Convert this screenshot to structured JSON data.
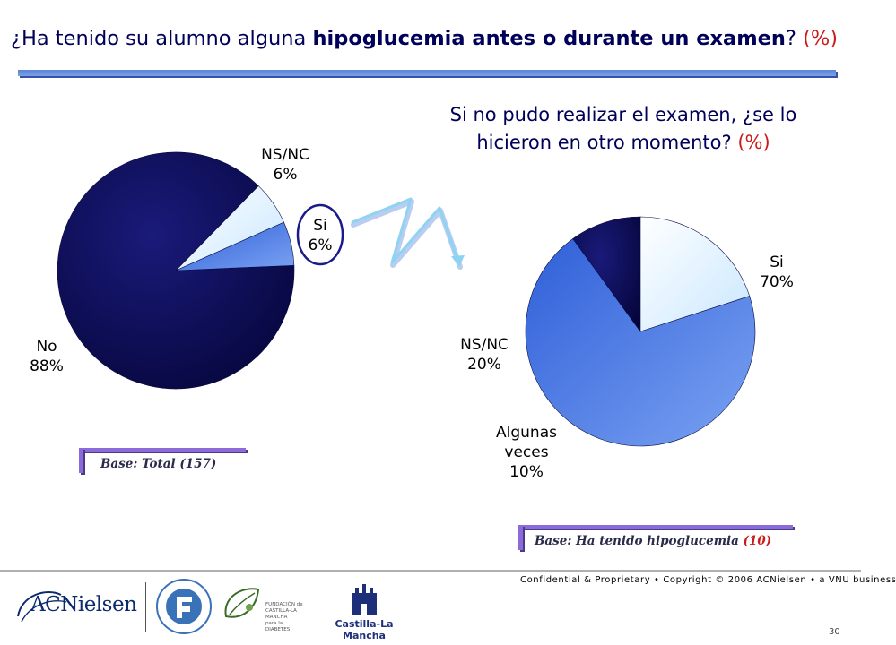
{
  "header": {
    "title_lead": "¿Ha tenido su alumno alguna ",
    "title_bold": "hipoglucemia antes o durante un examen",
    "title_tail": "? ",
    "title_pct": "(%)"
  },
  "sub": {
    "line1": "Si no pudo realizar el examen, ¿se lo",
    "line2": "hicieron en otro momento? ",
    "pct": "(%)"
  },
  "chart_data": [
    {
      "type": "pie",
      "title": "¿Ha tenido su alumno alguna hipoglucemia antes o durante un examen? (%)",
      "slices": [
        {
          "label": "No",
          "value": 88,
          "value_label": "88%",
          "color": "#0a0a50"
        },
        {
          "label": "NS/NC",
          "value": 6,
          "value_label": "6%",
          "color": "#e0f2ff"
        },
        {
          "label": "Si",
          "value": 6,
          "value_label": "6%",
          "color": "#3a6ae0"
        }
      ],
      "base_prefix": "Base: Total ",
      "base_n": "(157)"
    },
    {
      "type": "pie",
      "title": "Si no pudo realizar el examen, ¿se lo hicieron en otro momento? (%)",
      "slices": [
        {
          "label": "Si",
          "value": 70,
          "value_label": "70%",
          "color": "#4a78e6"
        },
        {
          "label": "Algunas veces",
          "value": 10,
          "value_label": "10%",
          "color": "#0a0a50"
        },
        {
          "label": "NS/NC",
          "value": 20,
          "value_label": "20%",
          "color": "#e0f2ff"
        }
      ],
      "base_prefix": "Base: Ha tenido hipoglucemia ",
      "base_n": "(10)"
    }
  ],
  "labels": {
    "p1_no_1": "No",
    "p1_no_2": "88%",
    "p1_ns_1": "NS/NC",
    "p1_ns_2": "6%",
    "p1_si_1": "Si",
    "p1_si_2": "6%",
    "p2_si_1": "Si",
    "p2_si_2": "70%",
    "p2_ns_1": "NS/NC",
    "p2_ns_2": "20%",
    "p2_av_1": "Algunas",
    "p2_av_2": "veces",
    "p2_av_3": "10%"
  },
  "footer": {
    "confidential": "Confidential & Proprietary • Copyright © 2006 ACNielsen • a VNU business",
    "page": "30",
    "logo_acn": "ACNielsen",
    "logo_fund_1": "FUNDACIÓN de",
    "logo_fund_2": "CASTILLA-LA MANCHA",
    "logo_fund_3": "para la DIABETES",
    "logo_clm": "Castilla-La Mancha"
  }
}
